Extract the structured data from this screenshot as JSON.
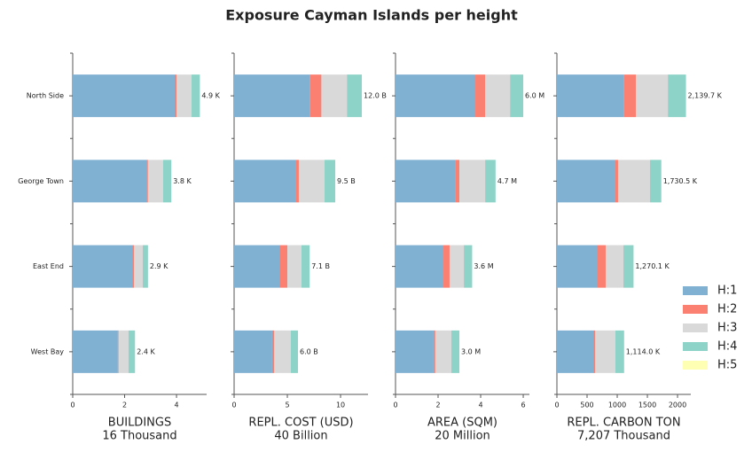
{
  "title": "Exposure Cayman Islands per height",
  "categories": [
    "North Side",
    "George Town",
    "East End",
    "West Bay"
  ],
  "legend": {
    "position": "right",
    "items": [
      {
        "name": "H:1",
        "color": "#80b1d3"
      },
      {
        "name": "H:2",
        "color": "#fb8072"
      },
      {
        "name": "H:3",
        "color": "#d9d9d9"
      },
      {
        "name": "H:4",
        "color": "#8dd3c7"
      },
      {
        "name": "H:5",
        "color": "#ffffb3"
      }
    ]
  },
  "chart_data": [
    {
      "type": "barh",
      "xlabel": [
        "BUILDINGS",
        "16 Thousand"
      ],
      "xlim": [
        0,
        5.16
      ],
      "xticks": [
        0,
        2,
        4
      ],
      "series": [
        {
          "values": [
            3.93,
            2.87,
            2.29,
            1.74
          ]
        },
        {
          "values": [
            0.07,
            0.03,
            0.07,
            0.03
          ]
        },
        {
          "values": [
            0.58,
            0.58,
            0.34,
            0.38
          ]
        },
        {
          "values": [
            0.32,
            0.32,
            0.2,
            0.25
          ]
        },
        {
          "values": [
            0,
            0,
            0,
            0
          ]
        }
      ],
      "totals": [
        4.9,
        3.8,
        2.9,
        2.4
      ],
      "total_labels": [
        "4.9 K",
        "3.8 K",
        "2.9 K",
        "2.4 K"
      ]
    },
    {
      "type": "barh",
      "xlabel": [
        "REPL. COST (USD)",
        "40 Billion"
      ],
      "xlim": [
        0,
        12.58
      ],
      "xticks": [
        0,
        5,
        10
      ],
      "series": [
        {
          "values": [
            7.1,
            5.83,
            4.25,
            3.58
          ]
        },
        {
          "values": [
            1.1,
            0.25,
            0.75,
            0.17
          ]
        },
        {
          "values": [
            2.4,
            2.42,
            1.33,
            1.58
          ]
        },
        {
          "values": [
            1.4,
            1.0,
            0.77,
            0.67
          ]
        },
        {
          "values": [
            0,
            0,
            0,
            0
          ]
        }
      ],
      "totals": [
        12.0,
        9.5,
        7.1,
        6.0
      ],
      "total_labels": [
        "12.0 B",
        "9.5 B",
        "7.1 B",
        "6.0 B"
      ]
    },
    {
      "type": "barh",
      "xlabel": [
        "AREA (SQM)",
        "20 Million"
      ],
      "xlim": [
        0,
        6.29
      ],
      "xticks": [
        0,
        2,
        4,
        6
      ],
      "series": [
        {
          "values": [
            3.75,
            2.83,
            2.25,
            1.79
          ]
        },
        {
          "values": [
            0.46,
            0.17,
            0.29,
            0.08
          ]
        },
        {
          "values": [
            1.17,
            1.21,
            0.67,
            0.75
          ]
        },
        {
          "values": [
            0.62,
            0.49,
            0.39,
            0.38
          ]
        },
        {
          "values": [
            0,
            0,
            0,
            0
          ]
        }
      ],
      "totals": [
        6.0,
        4.7,
        3.6,
        3.0
      ],
      "total_labels": [
        "6.0 M",
        "4.7 M",
        "3.6 M",
        "3.0 M"
      ]
    },
    {
      "type": "barh",
      "xlabel": [
        "REPL. CARBON TON",
        "7,207 Thousand"
      ],
      "xlim": [
        0,
        2220
      ],
      "xticks": [
        0,
        500,
        1000,
        1500,
        2000
      ],
      "series": [
        {
          "values": [
            1105,
            970,
            662,
            603
          ]
        },
        {
          "values": [
            205,
            44,
            147,
            29
          ]
        },
        {
          "values": [
            530,
            529,
            294,
            338
          ]
        },
        {
          "values": [
            299.7,
            187.5,
            167.1,
            144
          ]
        },
        {
          "values": [
            0,
            0,
            0,
            0
          ]
        }
      ],
      "totals": [
        2139.7,
        1730.5,
        1270.1,
        1114.0
      ],
      "total_labels": [
        "2,139.7 K",
        "1,730.5 K",
        "1,270.1 K",
        "1,114.0 K"
      ]
    }
  ]
}
